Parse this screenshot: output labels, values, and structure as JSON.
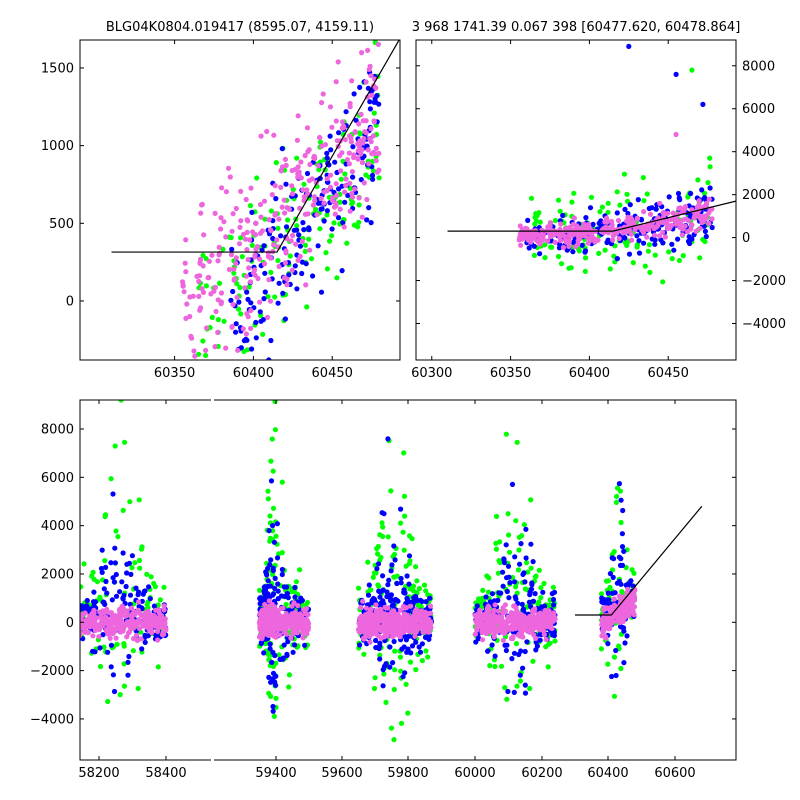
{
  "titles": {
    "left": "BLG04K0804.019417 (8595.07, 4159.11)",
    "right": "3 968 1741.39 0.067 398 [60477.620, 60478.864]"
  },
  "colors": {
    "series_a": "#00ff00",
    "series_b": "#0000ff",
    "series_c": "#ee66dd",
    "model_line": "#000000"
  },
  "chart_data": [
    {
      "type": "scatter",
      "panel": "top-left",
      "title": "BLG04K0804.019417 (8595.07, 4159.11)",
      "xlim": [
        60290,
        60493
      ],
      "ylim": [
        -380,
        1680
      ],
      "xticks": [
        60350,
        60400,
        60450
      ],
      "yticks": [
        0,
        500,
        1000,
        1500
      ],
      "grid": false,
      "series": [
        {
          "color": "#00ff00",
          "clusters": [
            {
              "x": [
                60365,
                60480
              ],
              "y": [
                -380,
                1650
              ],
              "count": 160,
              "trend": 0.6
            }
          ]
        },
        {
          "color": "#0000ff",
          "clusters": [
            {
              "x": [
                60385,
                60480
              ],
              "y": [
                -380,
                1650
              ],
              "count": 190,
              "trend": 0.7
            }
          ]
        },
        {
          "color": "#ee66dd",
          "clusters": [
            {
              "x": [
                60355,
                60480
              ],
              "y": [
                -250,
                1650
              ],
              "count": 320,
              "trend": 0.65
            }
          ]
        }
      ],
      "model": [
        [
          60310,
          315
        ],
        [
          60415,
          315
        ],
        [
          60493,
          1690
        ]
      ]
    },
    {
      "type": "scatter",
      "panel": "top-right",
      "title": "3 968 1741.39 0.067 398 [60477.620, 60478.864]",
      "xlim": [
        60290,
        60493
      ],
      "ylim": [
        -5700,
        9200
      ],
      "xticks": [
        60300,
        60350,
        60400,
        60450
      ],
      "yticks": [
        -4000,
        -2000,
        0,
        2000,
        4000,
        6000,
        8000
      ],
      "grid": false,
      "series": [
        {
          "color": "#00ff00",
          "clusters": [
            {
              "x": [
                60360,
                60478
              ],
              "y": [
                -2500,
                3500
              ],
              "count": 120,
              "spread": "wide"
            }
          ]
        },
        {
          "color": "#0000ff",
          "clusters": [
            {
              "x": [
                60360,
                60478
              ],
              "y": [
                -1500,
                2500
              ],
              "count": 200,
              "spread": "medium"
            }
          ]
        },
        {
          "color": "#ee66dd",
          "clusters": [
            {
              "x": [
                60355,
                60478
              ],
              "y": [
                -800,
                2000
              ],
              "count": 320,
              "spread": "narrow"
            }
          ]
        }
      ],
      "outliers": [
        {
          "x": 60425,
          "y": 8900,
          "color": "#0000ff"
        },
        {
          "x": 60465,
          "y": 7800,
          "color": "#00ff00"
        },
        {
          "x": 60455,
          "y": 7600,
          "color": "#0000ff"
        },
        {
          "x": 60472,
          "y": 6200,
          "color": "#0000ff"
        },
        {
          "x": 60455,
          "y": 4800,
          "color": "#ee66dd"
        }
      ],
      "model": [
        [
          60310,
          300
        ],
        [
          60415,
          300
        ],
        [
          60493,
          1700
        ]
      ]
    },
    {
      "type": "scatter",
      "panel": "bottom",
      "xlim": [
        58130,
        60680
      ],
      "ylim": [
        -5700,
        9200
      ],
      "xticks": [
        58200,
        58400,
        59400,
        59600,
        59800,
        60000,
        60200,
        60400,
        60600
      ],
      "yticks": [
        -4000,
        -2000,
        0,
        2000,
        4000,
        6000,
        8000
      ],
      "grid": false,
      "axis_break_x": 212,
      "seasons": [
        {
          "x": [
            58140,
            58400
          ],
          "count": 550
        },
        {
          "x": [
            59250,
            59500
          ],
          "count": 700
        },
        {
          "x": [
            59650,
            59870
          ],
          "count": 750
        },
        {
          "x": [
            60000,
            60240
          ],
          "count": 650
        },
        {
          "x": [
            60380,
            60480
          ],
          "count": 300
        }
      ],
      "model": [
        [
          60300,
          300
        ],
        [
          60410,
          300
        ],
        [
          60680,
          4800
        ]
      ]
    }
  ]
}
